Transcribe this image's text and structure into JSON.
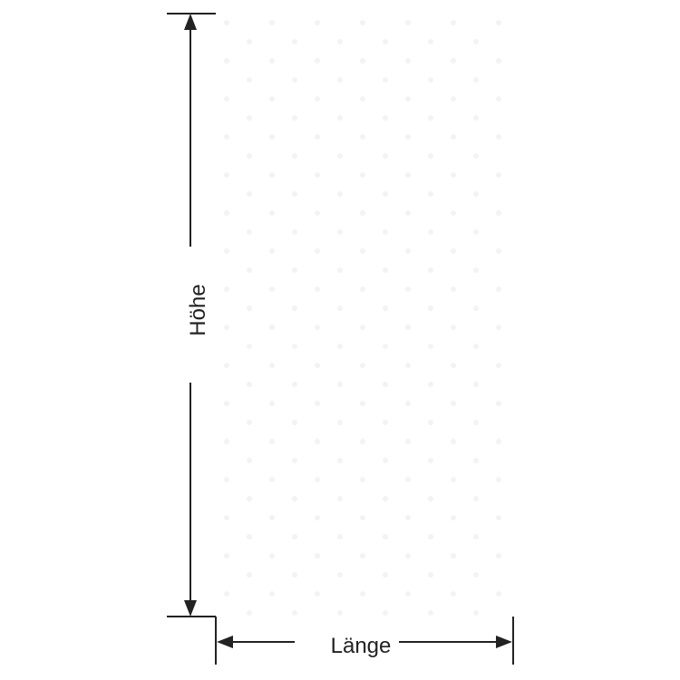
{
  "dimensions": {
    "height_label": "Höhe",
    "length_label": "Länge"
  },
  "colors": {
    "line": "#222222",
    "dots": "#f4f4f4"
  }
}
